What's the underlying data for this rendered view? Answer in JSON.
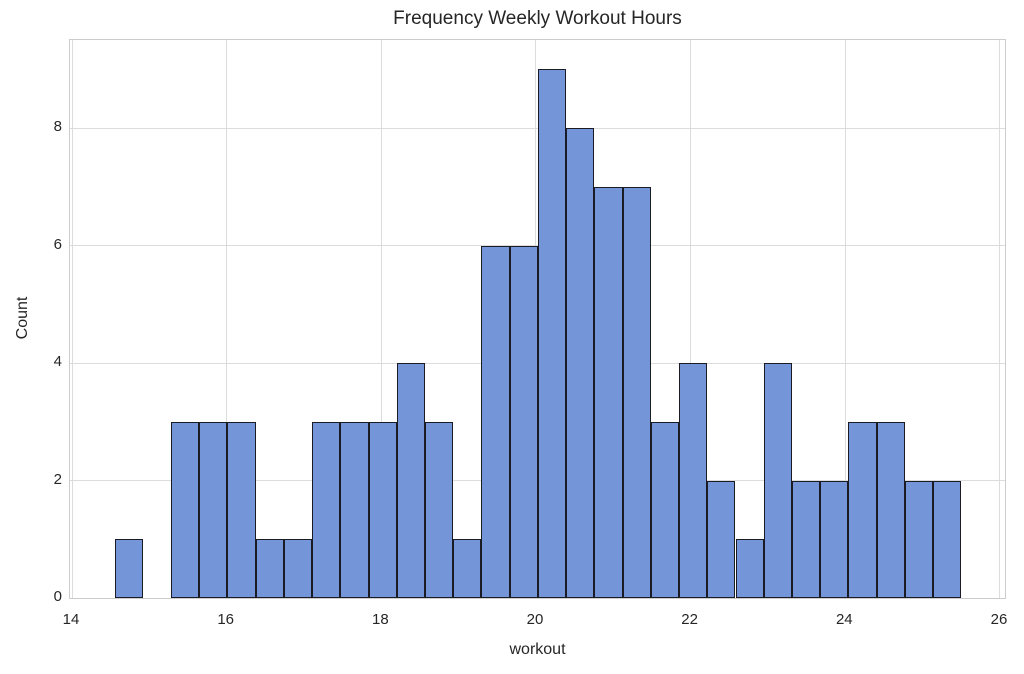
{
  "chart_data": {
    "type": "bar",
    "subtype": "histogram",
    "title": "Frequency Weekly Workout Hours",
    "xlabel": "workout",
    "ylabel": "Count",
    "bin_start": 14.55,
    "bin_width": 0.365,
    "bin_edges": [
      14.55,
      14.915,
      15.28,
      15.645,
      16.01,
      16.375,
      16.74,
      17.105,
      17.47,
      17.835,
      18.2,
      18.565,
      18.93,
      19.295,
      19.66,
      20.025,
      20.39,
      20.755,
      21.12,
      21.485,
      21.85,
      22.215,
      22.58,
      22.945,
      23.31,
      23.675,
      24.04,
      24.405,
      24.77,
      25.135,
      25.5
    ],
    "values": [
      1,
      0,
      3,
      3,
      3,
      1,
      1,
      3,
      3,
      3,
      4,
      3,
      1,
      6,
      6,
      9,
      8,
      7,
      7,
      3,
      4,
      2,
      1,
      4,
      2,
      2,
      3,
      3,
      2,
      2
    ],
    "total_count": 100,
    "xlim": [
      13.974,
      26.065
    ],
    "ylim": [
      0,
      9.5
    ],
    "x_ticks": [
      14,
      16,
      18,
      20,
      22,
      24,
      26
    ],
    "y_ticks": [
      0,
      2,
      4,
      6,
      8
    ],
    "grid": true,
    "legend": false,
    "colors": {
      "bar_fill": "#7495d8",
      "bar_edge": "#1b1b26",
      "grid": "#dcdcdc",
      "spine": "#cccccc",
      "text": "#262626",
      "background": "#ffffff"
    }
  }
}
